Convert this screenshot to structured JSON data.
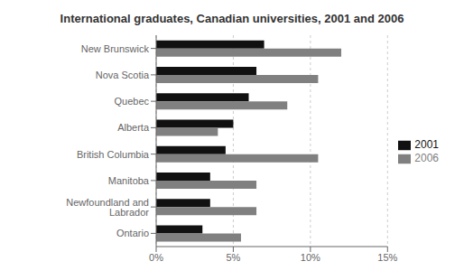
{
  "chart_data": {
    "type": "bar",
    "orientation": "horizontal",
    "title": "International graduates, Canadian universities, 2001 and 2006",
    "categories": [
      "New Brunswick",
      "Nova Scotia",
      "Quebec",
      "Alberta",
      "British Columbia",
      "Manitoba",
      "Newfoundland and Labrador",
      "Ontario"
    ],
    "series": [
      {
        "name": "2001",
        "color": "#111111",
        "values": [
          7.0,
          6.5,
          6.0,
          5.0,
          4.5,
          3.5,
          3.5,
          3.0
        ]
      },
      {
        "name": "2006",
        "color": "#808080",
        "values": [
          12.0,
          10.5,
          8.5,
          4.0,
          10.5,
          6.5,
          6.5,
          5.5
        ]
      }
    ],
    "xlim": [
      0,
      15
    ],
    "xticks": [
      {
        "value": 0,
        "label": "0%"
      },
      {
        "value": 5,
        "label": "5%"
      },
      {
        "value": 10,
        "label": "10%"
      },
      {
        "value": 15,
        "label": "15%"
      }
    ],
    "grid": true,
    "legend": "right"
  }
}
